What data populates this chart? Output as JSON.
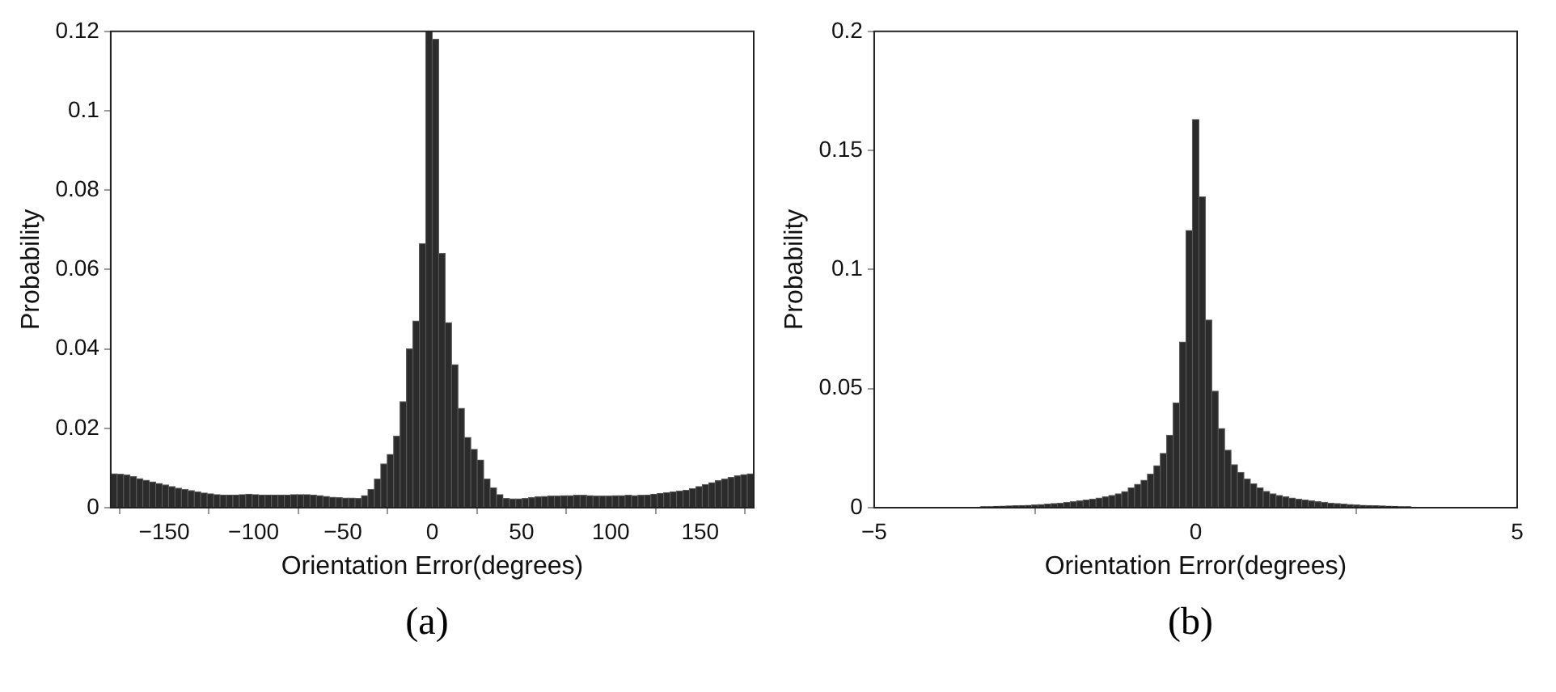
{
  "chart_data": [
    {
      "type": "histogram",
      "xlabel": "Orientation Error(degrees)",
      "ylabel": "Probability",
      "annotations": [
        "(a)"
      ],
      "color": "#2b2b2b",
      "grid": false,
      "bins": [
        -180,
        -176.4,
        -172.8,
        -169.2,
        -165.6,
        -162,
        -158.4,
        -154.8,
        -151.2,
        -147.6,
        -144,
        -140.4,
        -136.8,
        -133.2,
        -129.6,
        -126,
        -122.4,
        -118.8,
        -115.2,
        -111.6,
        -108,
        -104.4,
        -100.8,
        -97.2,
        -93.6,
        -90,
        -86.4,
        -82.8,
        -79.2,
        -75.6,
        -72,
        -68.4,
        -64.8,
        -61.2,
        -57.6,
        -54,
        -50.4,
        -46.8,
        -43.2,
        -39.6,
        -36,
        -32.4,
        -28.8,
        -25.2,
        -21.6,
        -18,
        -14.4,
        -10.8,
        -7.2,
        -3.6,
        0,
        3.6,
        7.2,
        10.8,
        14.4,
        18,
        21.6,
        25.2,
        28.8,
        32.4,
        36,
        39.6,
        43.2,
        46.8,
        50.4,
        54,
        57.6,
        61.2,
        64.8,
        68.4,
        72,
        75.6,
        79.2,
        82.8,
        86.4,
        90,
        93.6,
        97.2,
        100.8,
        104.4,
        108,
        111.6,
        115.2,
        118.8,
        122.4,
        126,
        129.6,
        133.2,
        136.8,
        140.4,
        144,
        147.6,
        151.2,
        154.8,
        158.4,
        162,
        165.6,
        169.2,
        172.8,
        176.4,
        180
      ],
      "values": [
        0.0085,
        0.0084,
        0.0082,
        0.0078,
        0.0073,
        0.0069,
        0.0065,
        0.0061,
        0.0057,
        0.0053,
        0.0049,
        0.0046,
        0.0043,
        0.004,
        0.0037,
        0.0035,
        0.0033,
        0.0032,
        0.0032,
        0.0032,
        0.0033,
        0.0034,
        0.0033,
        0.0032,
        0.0032,
        0.0032,
        0.0032,
        0.0032,
        0.0033,
        0.0033,
        0.0033,
        0.0032,
        0.003,
        0.0028,
        0.0026,
        0.0025,
        0.0024,
        0.0024,
        0.0023,
        0.003,
        0.0046,
        0.0072,
        0.011,
        0.0134,
        0.018,
        0.0267,
        0.04,
        0.047,
        0.0665,
        0.12,
        0.118,
        0.064,
        0.0466,
        0.036,
        0.025,
        0.0177,
        0.0147,
        0.012,
        0.0072,
        0.005,
        0.0033,
        0.0023,
        0.0022,
        0.0022,
        0.0023,
        0.0025,
        0.0027,
        0.0028,
        0.0029,
        0.0029,
        0.003,
        0.003,
        0.0031,
        0.0031,
        0.003,
        0.0029,
        0.0029,
        0.0029,
        0.003,
        0.003,
        0.0031,
        0.003,
        0.0031,
        0.0032,
        0.0034,
        0.0036,
        0.0038,
        0.004,
        0.0042,
        0.0044,
        0.0048,
        0.0053,
        0.0058,
        0.0063,
        0.0068,
        0.0072,
        0.0076,
        0.008,
        0.0083,
        0.0085
      ],
      "xlim": [
        -180,
        180
      ],
      "xticks": [
        -150,
        -100,
        -50,
        0,
        50,
        100,
        150
      ],
      "ylim": [
        0,
        0.12
      ],
      "yticks": [
        0,
        0.02,
        0.04,
        0.06,
        0.08,
        0.1,
        0.12
      ]
    },
    {
      "type": "histogram",
      "xlabel": "Orientation Error(degrees)",
      "ylabel": "Probability",
      "annotations": [
        "(b)"
      ],
      "color": "#2b2b2b",
      "grid": false,
      "bins": [
        -4.95,
        -4.85,
        -4.75,
        -4.65,
        -4.55,
        -4.45,
        -4.35,
        -4.25,
        -4.15,
        -4.05,
        -3.95,
        -3.85,
        -3.75,
        -3.65,
        -3.55,
        -3.45,
        -3.35,
        -3.25,
        -3.15,
        -3.05,
        -2.95,
        -2.85,
        -2.75,
        -2.65,
        -2.55,
        -2.45,
        -2.35,
        -2.25,
        -2.15,
        -2.05,
        -1.95,
        -1.85,
        -1.75,
        -1.65,
        -1.55,
        -1.45,
        -1.35,
        -1.25,
        -1.15,
        -1.05,
        -0.95,
        -0.85,
        -0.75,
        -0.65,
        -0.55,
        -0.45,
        -0.35,
        -0.25,
        -0.15,
        -0.05,
        0.05,
        0.15,
        0.25,
        0.35,
        0.45,
        0.55,
        0.65,
        0.75,
        0.85,
        0.95,
        1.05,
        1.15,
        1.25,
        1.35,
        1.45,
        1.55,
        1.65,
        1.75,
        1.85,
        1.95,
        2.05,
        2.15,
        2.25,
        2.35,
        2.45,
        2.55,
        2.65,
        2.75,
        2.85,
        2.95,
        3.05,
        3.15,
        3.25,
        3.35,
        3.45,
        3.55,
        3.65,
        3.75,
        3.85,
        3.95,
        4.05,
        4.15,
        4.25,
        4.35,
        4.45,
        4.55,
        4.65,
        4.75,
        4.85,
        4.95
      ],
      "values": [
        0.0001,
        0.0001,
        0.0001,
        0.0001,
        0.0001,
        0.0001,
        0.0001,
        0.0002,
        0.0002,
        0.0002,
        0.0002,
        0.0002,
        0.0002,
        0.0003,
        0.0003,
        0.0003,
        0.0004,
        0.0004,
        0.0005,
        0.0006,
        0.0007,
        0.0008,
        0.0009,
        0.001,
        0.0011,
        0.0013,
        0.0015,
        0.0017,
        0.0019,
        0.0022,
        0.0025,
        0.0028,
        0.0032,
        0.0036,
        0.004,
        0.0045,
        0.0051,
        0.0058,
        0.0067,
        0.0083,
        0.0098,
        0.0115,
        0.0141,
        0.0176,
        0.0228,
        0.0304,
        0.044,
        0.0695,
        0.1164,
        0.163,
        0.1305,
        0.0788,
        0.0489,
        0.0332,
        0.0241,
        0.018,
        0.0148,
        0.012,
        0.01,
        0.0083,
        0.0068,
        0.0058,
        0.0051,
        0.0045,
        0.004,
        0.0036,
        0.0032,
        0.0028,
        0.0025,
        0.0022,
        0.0019,
        0.0017,
        0.0015,
        0.0013,
        0.0011,
        0.001,
        0.0009,
        0.0008,
        0.0007,
        0.0006,
        0.0005,
        0.0004,
        0.0004,
        0.0003,
        0.0003,
        0.0003,
        0.0002,
        0.0002,
        0.0002,
        0.0002,
        0.0002,
        0.0002,
        0.0001,
        0.0001,
        0.0001,
        0.0001,
        0.0001,
        0.0001,
        0.0001
      ],
      "xlim": [
        -5,
        5
      ],
      "xticks": [
        -5,
        0,
        5
      ],
      "ylim": [
        0,
        0.2
      ],
      "yticks": [
        0,
        0.05,
        0.1,
        0.15,
        0.2
      ]
    }
  ]
}
